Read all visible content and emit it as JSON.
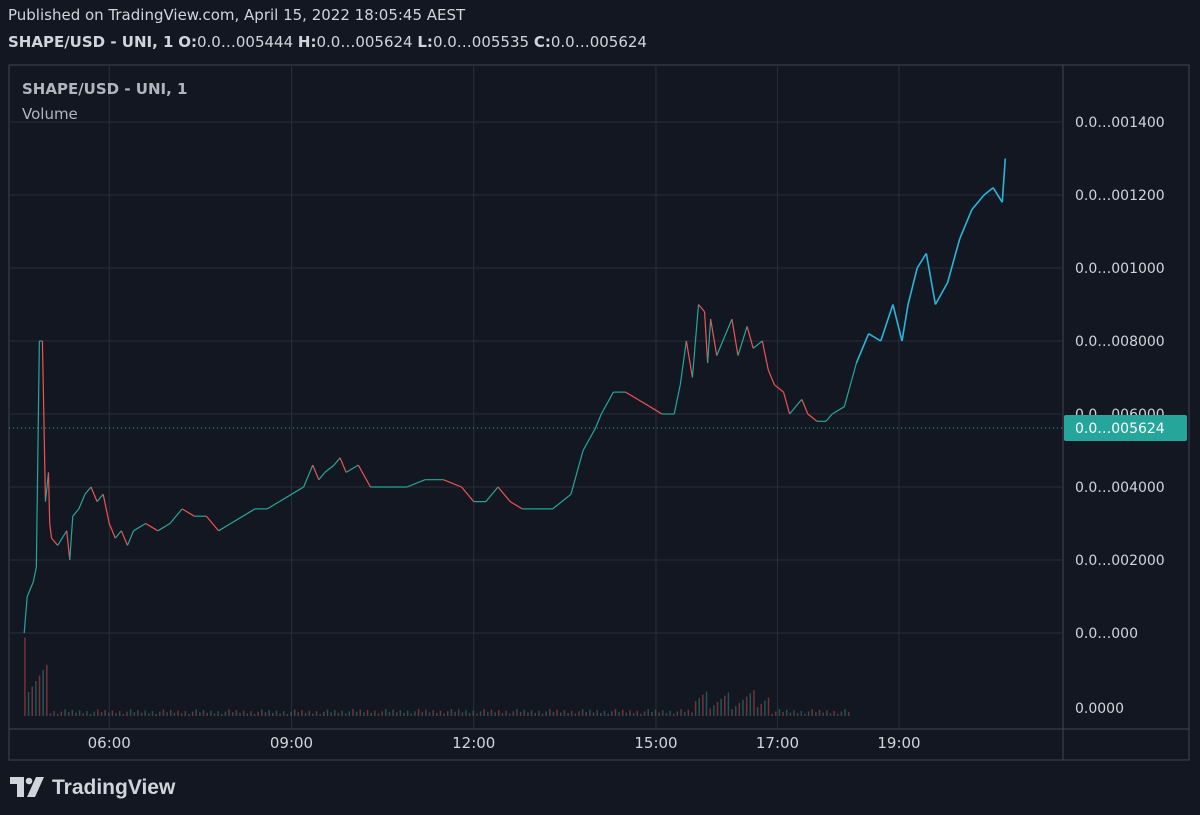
{
  "header": {
    "published": "Published on TradingView.com, April 15, 2022 18:05:45 AEST",
    "symbol": "SHAPE/USD - UNI, 1",
    "o_label": "O:",
    "o_value": "0.0…005444",
    "h_label": "H:",
    "h_value": "0.0…005624",
    "l_label": "L:",
    "l_value": "0.0…005535",
    "c_label": "C:",
    "c_value": "0.0…005624"
  },
  "legend": {
    "symbol": "SHAPE/USD - UNI, 1",
    "volume": "Volume"
  },
  "brand": {
    "name": "TradingView",
    "logo_icon": "tradingview-logo-icon"
  },
  "colors": {
    "bg": "#131722",
    "grid": "#2a2e39",
    "up": "#26a69a",
    "down": "#ef5350",
    "projection": "#29b6d8",
    "last_price_bg": "#26a69a"
  },
  "chart_data": {
    "type": "line",
    "x_tick_labels": [
      "06:00",
      "09:00",
      "12:00",
      "15:00",
      "17:00",
      "19:00"
    ],
    "y_tick_labels": [
      "0.0…001400",
      "0.0…001200",
      "0.0…001000",
      "0.0…008000",
      "0.0…006000",
      "0.0…004000",
      "0.0…002000",
      "0.0…000",
      "0.0000"
    ],
    "last_price_label": "0.0…005624",
    "series": [
      {
        "y_axis_units": "printed y tick positions (0 = 0.0…000, 1 = 0.0…002000, 2 = 0.0…004000, 3 = 0.0…006000, 4 = 0.0…008000, 5 = 0.0…001000, 6 = 0.0…001200, 7 = 0.0…001400)",
        "x_unit": "hour of day",
        "points": [
          [
            4.6,
            0.0
          ],
          [
            4.65,
            0.5
          ],
          [
            4.75,
            0.7
          ],
          [
            4.8,
            0.9
          ],
          [
            4.85,
            4.0
          ],
          [
            4.9,
            4.0
          ],
          [
            4.95,
            1.8
          ],
          [
            5.0,
            2.2
          ],
          [
            5.02,
            1.5
          ],
          [
            5.05,
            1.3
          ],
          [
            5.15,
            1.2
          ],
          [
            5.3,
            1.4
          ],
          [
            5.35,
            1.0
          ],
          [
            5.4,
            1.6
          ],
          [
            5.5,
            1.7
          ],
          [
            5.6,
            1.9
          ],
          [
            5.7,
            2.0
          ],
          [
            5.8,
            1.8
          ],
          [
            5.9,
            1.9
          ],
          [
            6.0,
            1.5
          ],
          [
            6.1,
            1.3
          ],
          [
            6.2,
            1.4
          ],
          [
            6.3,
            1.2
          ],
          [
            6.4,
            1.4
          ],
          [
            6.6,
            1.5
          ],
          [
            6.8,
            1.4
          ],
          [
            7.0,
            1.5
          ],
          [
            7.2,
            1.7
          ],
          [
            7.4,
            1.6
          ],
          [
            7.6,
            1.6
          ],
          [
            7.8,
            1.4
          ],
          [
            8.0,
            1.5
          ],
          [
            8.2,
            1.6
          ],
          [
            8.4,
            1.7
          ],
          [
            8.6,
            1.7
          ],
          [
            8.8,
            1.8
          ],
          [
            9.0,
            1.9
          ],
          [
            9.2,
            2.0
          ],
          [
            9.35,
            2.3
          ],
          [
            9.45,
            2.1
          ],
          [
            9.55,
            2.2
          ],
          [
            9.7,
            2.3
          ],
          [
            9.8,
            2.4
          ],
          [
            9.9,
            2.2
          ],
          [
            10.1,
            2.3
          ],
          [
            10.3,
            2.0
          ],
          [
            10.6,
            2.0
          ],
          [
            10.9,
            2.0
          ],
          [
            11.2,
            2.1
          ],
          [
            11.5,
            2.1
          ],
          [
            11.8,
            2.0
          ],
          [
            12.0,
            1.8
          ],
          [
            12.2,
            1.8
          ],
          [
            12.4,
            2.0
          ],
          [
            12.6,
            1.8
          ],
          [
            12.8,
            1.7
          ],
          [
            13.0,
            1.7
          ],
          [
            13.3,
            1.7
          ],
          [
            13.6,
            1.9
          ],
          [
            13.8,
            2.5
          ],
          [
            14.0,
            2.8
          ],
          [
            14.1,
            3.0
          ],
          [
            14.3,
            3.3
          ],
          [
            14.5,
            3.3
          ],
          [
            14.7,
            3.2
          ],
          [
            14.9,
            3.1
          ],
          [
            15.1,
            3.0
          ],
          [
            15.3,
            3.0
          ],
          [
            15.4,
            3.4
          ],
          [
            15.5,
            4.0
          ],
          [
            15.6,
            3.5
          ],
          [
            15.7,
            4.5
          ],
          [
            15.8,
            4.4
          ],
          [
            15.85,
            3.7
          ],
          [
            15.9,
            4.3
          ],
          [
            16.0,
            3.8
          ],
          [
            16.1,
            4.0
          ],
          [
            16.25,
            4.3
          ],
          [
            16.35,
            3.8
          ],
          [
            16.5,
            4.2
          ],
          [
            16.6,
            3.9
          ],
          [
            16.75,
            4.0
          ],
          [
            16.85,
            3.6
          ],
          [
            16.95,
            3.4
          ],
          [
            17.1,
            3.3
          ],
          [
            17.2,
            3.0
          ],
          [
            17.4,
            3.2
          ],
          [
            17.5,
            3.0
          ],
          [
            17.65,
            2.9
          ],
          [
            17.8,
            2.9
          ],
          [
            17.9,
            3.0
          ],
          [
            18.1,
            3.1
          ],
          [
            18.3,
            3.7
          ],
          [
            18.5,
            4.1
          ],
          [
            18.7,
            4.0
          ],
          [
            18.9,
            4.5
          ],
          [
            19.05,
            4.0
          ],
          [
            19.15,
            4.5
          ],
          [
            19.3,
            5.0
          ],
          [
            19.45,
            5.2
          ],
          [
            19.6,
            4.5
          ],
          [
            19.8,
            4.8
          ],
          [
            20.0,
            5.4
          ],
          [
            20.2,
            5.8
          ],
          [
            20.4,
            6.0
          ],
          [
            20.55,
            6.1
          ],
          [
            20.7,
            5.9
          ],
          [
            20.75,
            6.5
          ]
        ]
      }
    ],
    "xlim": [
      4.35,
      21.7
    ],
    "ylim": [
      -1.0,
      7.9
    ],
    "volume_panel": true,
    "grid": true,
    "legend_position": "top-left"
  }
}
